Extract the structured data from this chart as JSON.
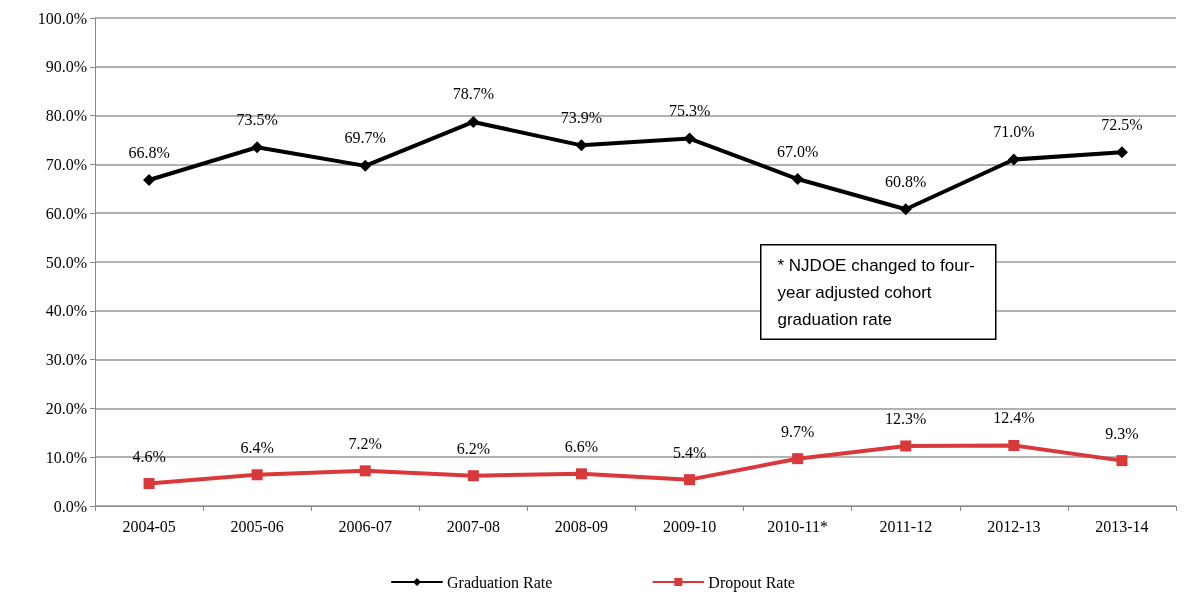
{
  "chart_data": {
    "type": "line",
    "categories": [
      "2004-05",
      "2005-06",
      "2006-07",
      "2007-08",
      "2008-09",
      "2009-10",
      "2010-11*",
      "2011-12",
      "2012-13",
      "2013-14"
    ],
    "series": [
      {
        "name": "Graduation Rate",
        "color": "#000000",
        "marker": "diamond",
        "values": [
          66.8,
          73.5,
          69.7,
          78.7,
          73.9,
          75.3,
          67.0,
          60.8,
          71.0,
          72.5
        ],
        "value_labels": [
          "66.8%",
          "73.5%",
          "69.7%",
          "78.7%",
          "73.9%",
          "75.3%",
          "67.0%",
          "60.8%",
          "71.0%",
          "72.5%"
        ]
      },
      {
        "name": "Dropout Rate",
        "color": "#d9393b",
        "marker": "square",
        "values": [
          4.6,
          6.4,
          7.2,
          6.2,
          6.6,
          5.4,
          9.7,
          12.3,
          12.4,
          9.3
        ],
        "value_labels": [
          "4.6%",
          "6.4%",
          "7.2%",
          "6.2%",
          "6.6%",
          "5.4%",
          "9.7%",
          "12.3%",
          "12.4%",
          "9.3%"
        ]
      }
    ],
    "ylim": [
      0,
      100
    ],
    "yticks": [
      {
        "value": 0,
        "label": "0.0%"
      },
      {
        "value": 10,
        "label": "10.0%"
      },
      {
        "value": 20,
        "label": "20.0%"
      },
      {
        "value": 30,
        "label": "30.0%"
      },
      {
        "value": 40,
        "label": "40.0%"
      },
      {
        "value": 50,
        "label": "50.0%"
      },
      {
        "value": 60,
        "label": "60.0%"
      },
      {
        "value": 70,
        "label": "70.0%"
      },
      {
        "value": 80,
        "label": "80.0%"
      },
      {
        "value": 90,
        "label": "90.0%"
      },
      {
        "value": 100,
        "label": "100.0%"
      }
    ],
    "grid": "y",
    "legend": "bottom",
    "line_style": "solid",
    "annotations": [
      "* NJDOE changed to four-\nyear adjusted cohort\ngraduation rate"
    ]
  }
}
